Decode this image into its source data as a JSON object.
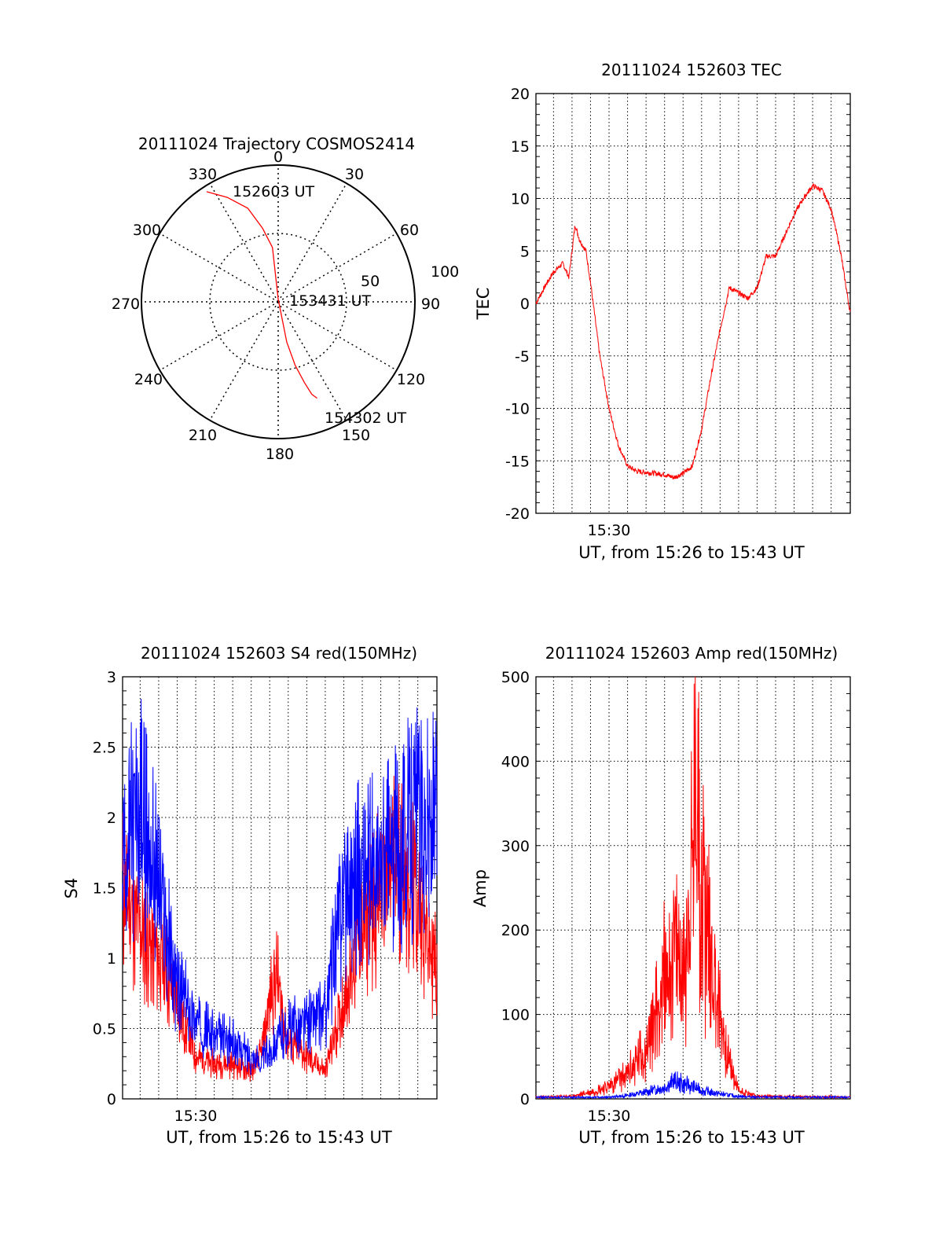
{
  "chart_data": [
    {
      "type": "polar-trajectory",
      "title": "20111024 Trajectory COSMOS2414",
      "azimuth_labels": [
        "0",
        "30",
        "60",
        "90",
        "120",
        "150",
        "180",
        "210",
        "240",
        "270",
        "300",
        "330"
      ],
      "elevation_labels": [
        "50",
        "100"
      ],
      "series": [
        {
          "color": "#ff0000",
          "points": [
            [
              -33,
              96
            ],
            [
              -26,
              85
            ],
            [
              -18,
              72
            ],
            [
              -12,
              55
            ],
            [
              -6,
              40
            ],
            [
              0,
              2
            ],
            [
              168,
              30
            ],
            [
              165,
              48
            ],
            [
              162,
              62
            ],
            [
              160,
              72
            ],
            [
              158,
              76
            ]
          ]
        }
      ],
      "annotations": [
        "152603 UT",
        "153431 UT",
        "154302 UT"
      ]
    },
    {
      "type": "line",
      "title": "20111024 152603 TEC",
      "xlabel": "UT, from 15:26 to 15:43 UT",
      "ylabel": "TEC",
      "x_range": [
        "15:26:03",
        "15:43:02"
      ],
      "x_tick_labels": [
        "15:30"
      ],
      "ylim": [
        -20,
        20
      ],
      "y_ticks": [
        -20,
        -15,
        -10,
        -5,
        0,
        5,
        10,
        15,
        20
      ],
      "grid": true,
      "series": [
        {
          "color": "#ff0000",
          "points": [
            [
              "15:26:03",
              0.0
            ],
            [
              "15:26:30",
              1.5
            ],
            [
              "15:27:00",
              3.0
            ],
            [
              "15:27:30",
              3.8
            ],
            [
              "15:27:50",
              2.5
            ],
            [
              "15:28:10",
              7.5
            ],
            [
              "15:28:25",
              6.0
            ],
            [
              "15:28:45",
              5.0
            ],
            [
              "15:29:00",
              2.0
            ],
            [
              "15:29:30",
              -5.0
            ],
            [
              "15:30:00",
              -10.0
            ],
            [
              "15:30:30",
              -13.5
            ],
            [
              "15:31:00",
              -15.5
            ],
            [
              "15:31:30",
              -16.0
            ],
            [
              "15:32:00",
              -16.1
            ],
            [
              "15:33:00",
              -16.3
            ],
            [
              "15:33:30",
              -16.6
            ],
            [
              "15:34:00",
              -16.2
            ],
            [
              "15:34:30",
              -15.5
            ],
            [
              "15:35:00",
              -12.0
            ],
            [
              "15:35:30",
              -7.0
            ],
            [
              "15:36:00",
              -2.5
            ],
            [
              "15:36:30",
              1.5
            ],
            [
              "15:37:00",
              1.0
            ],
            [
              "15:37:30",
              0.5
            ],
            [
              "15:38:00",
              1.5
            ],
            [
              "15:38:30",
              4.5
            ],
            [
              "15:39:00",
              4.5
            ],
            [
              "15:39:30",
              6.5
            ],
            [
              "15:40:00",
              8.5
            ],
            [
              "15:40:30",
              10.0
            ],
            [
              "15:41:00",
              11.2
            ],
            [
              "15:41:30",
              10.8
            ],
            [
              "15:42:00",
              9.0
            ],
            [
              "15:42:30",
              5.0
            ],
            [
              "15:43:02",
              -1.0
            ]
          ]
        }
      ]
    },
    {
      "type": "line",
      "title": "20111024 152603 S4 red(150MHz)",
      "xlabel": "UT, from 15:26 to 15:43 UT",
      "ylabel": "S4",
      "x_range": [
        "15:26:03",
        "15:43:02"
      ],
      "x_tick_labels": [
        "15:30"
      ],
      "ylim": [
        0,
        3
      ],
      "y_ticks": [
        0,
        0.5,
        1,
        1.5,
        2,
        2.5,
        3
      ],
      "y_tick_labels": [
        "0",
        "0.5",
        "1",
        "1.5",
        "2",
        "2.5",
        "3"
      ],
      "grid": true,
      "series": [
        {
          "color": "#ff0000",
          "points": [
            [
              "15:26:03",
              1.5
            ],
            [
              "15:27:00",
              1.2
            ],
            [
              "15:28:00",
              1.0
            ],
            [
              "15:29:00",
              0.7
            ],
            [
              "15:30:00",
              0.3
            ],
            [
              "15:31:00",
              0.25
            ],
            [
              "15:32:00",
              0.25
            ],
            [
              "15:33:00",
              0.2
            ],
            [
              "15:33:30",
              0.3
            ],
            [
              "15:34:00",
              0.7
            ],
            [
              "15:34:20",
              0.9
            ],
            [
              "15:35:00",
              0.4
            ],
            [
              "15:36:00",
              0.3
            ],
            [
              "15:37:00",
              0.2
            ],
            [
              "15:38:00",
              0.7
            ],
            [
              "15:39:00",
              1.2
            ],
            [
              "15:40:00",
              1.5
            ],
            [
              "15:41:00",
              1.7
            ],
            [
              "15:42:00",
              1.4
            ],
            [
              "15:43:02",
              0.9
            ]
          ]
        },
        {
          "color": "#0000ff",
          "points": [
            [
              "15:26:03",
              1.8
            ],
            [
              "15:27:00",
              2.0
            ],
            [
              "15:28:00",
              1.5
            ],
            [
              "15:29:00",
              0.8
            ],
            [
              "15:30:00",
              0.55
            ],
            [
              "15:31:00",
              0.45
            ],
            [
              "15:32:00",
              0.4
            ],
            [
              "15:33:00",
              0.3
            ],
            [
              "15:33:30",
              0.25
            ],
            [
              "15:34:00",
              0.35
            ],
            [
              "15:35:00",
              0.5
            ],
            [
              "15:36:00",
              0.55
            ],
            [
              "15:37:00",
              0.6
            ],
            [
              "15:38:00",
              1.5
            ],
            [
              "15:39:00",
              1.6
            ],
            [
              "15:40:00",
              1.6
            ],
            [
              "15:41:00",
              1.8
            ],
            [
              "15:42:00",
              2.0
            ],
            [
              "15:43:02",
              1.9
            ]
          ]
        }
      ]
    },
    {
      "type": "line",
      "title": "20111024 152603 Amp red(150MHz)",
      "xlabel": "UT, from 15:26 to 15:43 UT",
      "ylabel": "Amp",
      "x_range": [
        "15:26:03",
        "15:43:02"
      ],
      "x_tick_labels": [
        "15:30"
      ],
      "ylim": [
        0,
        500
      ],
      "y_ticks": [
        0,
        100,
        200,
        300,
        400,
        500
      ],
      "grid": true,
      "series": [
        {
          "color": "#ff0000",
          "points": [
            [
              "15:26:03",
              2
            ],
            [
              "15:28:00",
              3
            ],
            [
              "15:29:00",
              8
            ],
            [
              "15:30:00",
              15
            ],
            [
              "15:31:00",
              30
            ],
            [
              "15:32:00",
              60
            ],
            [
              "15:32:30",
              100
            ],
            [
              "15:33:00",
              140
            ],
            [
              "15:33:30",
              180
            ],
            [
              "15:34:00",
              150
            ],
            [
              "15:34:30",
              260
            ],
            [
              "15:34:45",
              420
            ],
            [
              "15:35:00",
              250
            ],
            [
              "15:35:30",
              180
            ],
            [
              "15:36:00",
              100
            ],
            [
              "15:36:30",
              40
            ],
            [
              "15:37:00",
              10
            ],
            [
              "15:38:00",
              3
            ],
            [
              "15:43:02",
              2
            ]
          ]
        },
        {
          "color": "#0000ff",
          "points": [
            [
              "15:26:03",
              2
            ],
            [
              "15:30:00",
              2
            ],
            [
              "15:31:00",
              4
            ],
            [
              "15:32:00",
              8
            ],
            [
              "15:33:00",
              14
            ],
            [
              "15:33:30",
              20
            ],
            [
              "15:34:00",
              18
            ],
            [
              "15:34:30",
              14
            ],
            [
              "15:35:00",
              10
            ],
            [
              "15:36:00",
              6
            ],
            [
              "15:37:00",
              3
            ],
            [
              "15:38:00",
              2
            ],
            [
              "15:43:02",
              2
            ]
          ]
        }
      ]
    }
  ]
}
